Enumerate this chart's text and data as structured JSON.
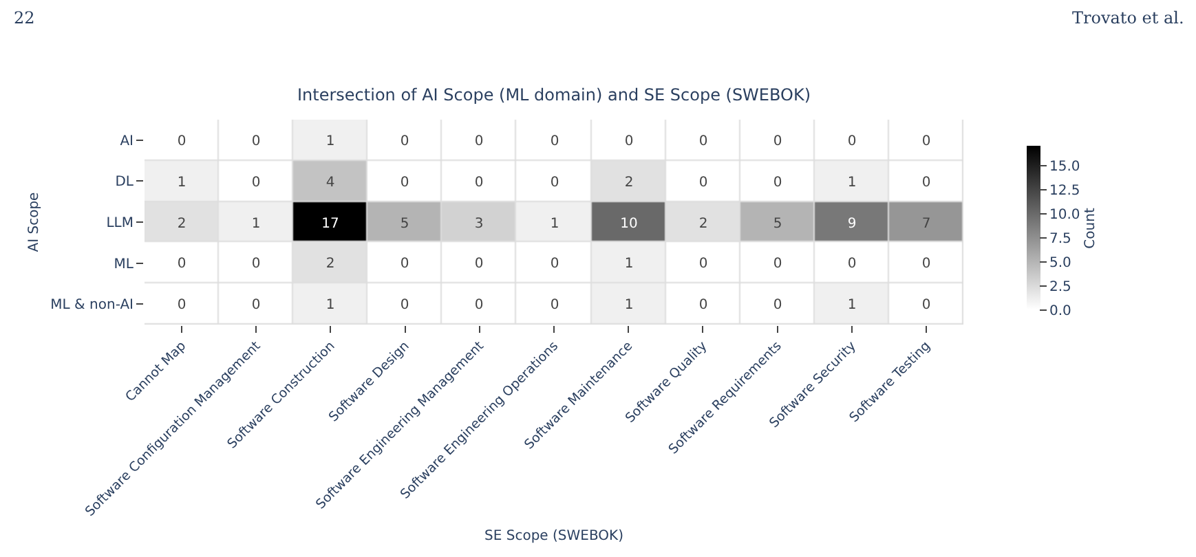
{
  "chart_data": {
    "type": "heatmap",
    "title": "Intersection of AI Scope (ML domain) and SE Scope (SWEBOK)",
    "xlabel": "SE Scope (SWEBOK)",
    "ylabel": "AI Scope",
    "clabel": "Count",
    "categories": [
      "Cannot Map",
      "Software Configuration Management",
      "Software Construction",
      "Software Design",
      "Software Engineering Management",
      "Software Engineering Operations",
      "Software Maintenance",
      "Software Quality",
      "Software Requirements",
      "Software Security",
      "Software Testing"
    ],
    "y_categories": [
      "AI",
      "DL",
      "LLM",
      "ML",
      "ML & non-AI"
    ],
    "cells": [
      [
        0,
        0,
        1,
        0,
        0,
        0,
        0,
        0,
        0,
        0,
        0
      ],
      [
        1,
        0,
        4,
        0,
        0,
        0,
        2,
        0,
        0,
        1,
        0
      ],
      [
        2,
        1,
        17,
        5,
        3,
        1,
        10,
        2,
        5,
        9,
        7
      ],
      [
        0,
        0,
        2,
        0,
        0,
        0,
        1,
        0,
        0,
        0,
        0
      ],
      [
        0,
        0,
        1,
        0,
        0,
        0,
        1,
        0,
        0,
        1,
        0
      ]
    ],
    "data_labels": true,
    "clim": [
      0,
      17
    ],
    "cticks": [
      {
        "value": 0,
        "label": "0.0"
      },
      {
        "value": 2.5,
        "label": "2.5"
      },
      {
        "value": 5,
        "label": "5.0"
      },
      {
        "value": 7.5,
        "label": "7.5"
      },
      {
        "value": 10,
        "label": "10.0"
      },
      {
        "value": 12.5,
        "label": "12.5"
      },
      {
        "value": 15,
        "label": "15.0"
      }
    ],
    "annotations": [
      "22",
      "Trovato et al."
    ]
  }
}
